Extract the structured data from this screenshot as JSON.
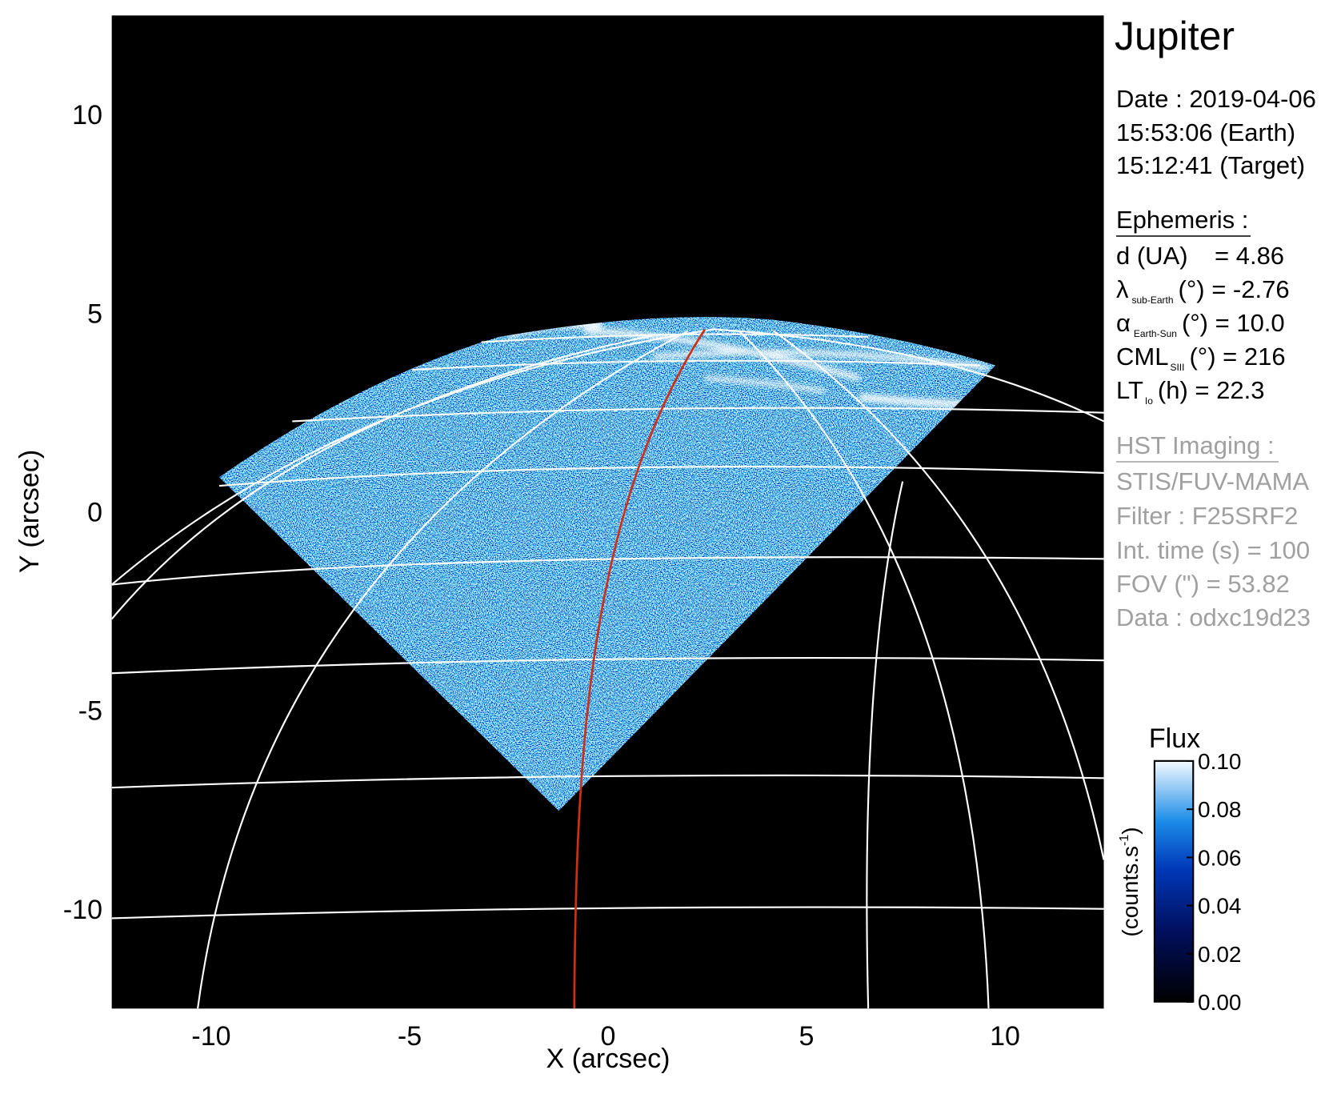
{
  "chart_data": {
    "type": "image",
    "title": "Jupiter",
    "xlabel": "X (arcsec)",
    "ylabel": "Y (arcsec)",
    "xlim": [
      -12.5,
      12.5
    ],
    "ylim": [
      -12.5,
      12.5
    ],
    "xticks": [
      -10,
      -5,
      0,
      5,
      10
    ],
    "yticks": [
      -10,
      -5,
      0,
      5,
      10
    ],
    "colorbar": {
      "title": "Flux",
      "label": {
        "text": "(counts.s",
        "sup": "-1",
        "end": ")"
      },
      "clim": [
        0,
        0.1
      ],
      "ticks": [
        {
          "value": 0,
          "label": "0.00"
        },
        0.02,
        0.04,
        0.06,
        0.08,
        {
          "value": 0.1,
          "label": "0.10"
        }
      ]
    }
  },
  "info": {
    "date": [
      "Date : 2019-04-06",
      "15:53:06 (Earth)",
      "15:12:41 (Target)"
    ],
    "ephemeris": {
      "heading": "Ephemeris :",
      "rows": [
        {
          "label": "d (UA)",
          "value": "= 4.86"
        },
        {
          "label": "λ",
          "sub": "sub-Earth",
          "value": "(°) = -2.76"
        },
        {
          "label": "α",
          "sub": "Earth-Sun",
          "value": "(°) = 10.0"
        },
        {
          "label": "CML",
          "sub": "SIII",
          "value": "(°) = 216"
        },
        {
          "label": "LT",
          "sub": "Io",
          "value": "(h) = 22.3"
        }
      ]
    },
    "imaging": {
      "heading": "HST Imaging :",
      "rows": [
        "STIS/FUV-MAMA",
        "Filter : F25SRF2",
        "Int. time (s) = 100",
        "FOV (\") = 53.82",
        "Data : odxc19d23"
      ]
    }
  }
}
